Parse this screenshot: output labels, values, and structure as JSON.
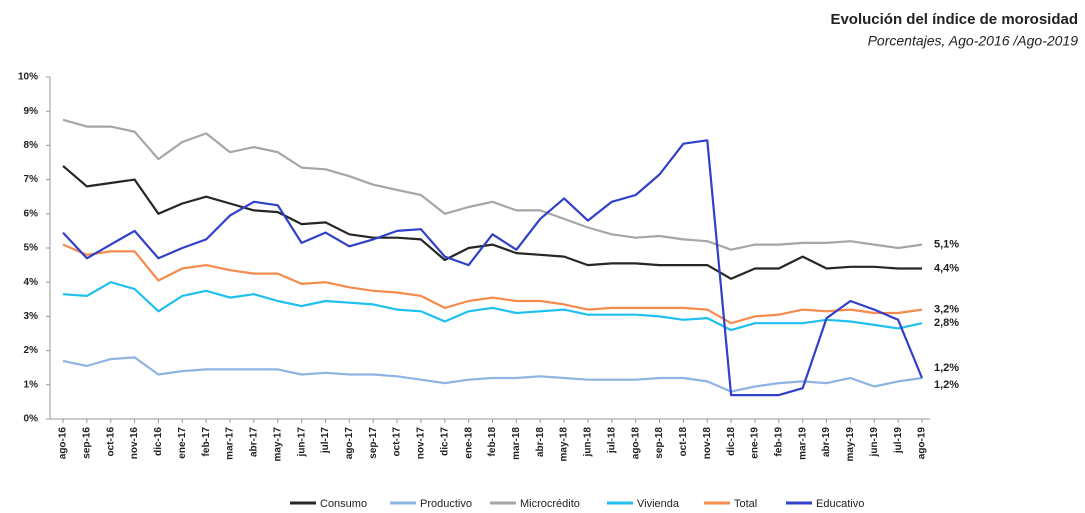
{
  "chart_data": {
    "type": "line",
    "title": "Evolución del  índice de morosidad",
    "subtitle": "Porcentajes, Ago-2016 /Ago-2019",
    "categories": [
      "ago-16",
      "sep-16",
      "oct-16",
      "nov-16",
      "dic-16",
      "ene-17",
      "feb-17",
      "mar-17",
      "abr-17",
      "may-17",
      "jun-17",
      "jul-17",
      "ago-17",
      "sep-17",
      "oct-17",
      "nov-17",
      "dic-17",
      "ene-18",
      "feb-18",
      "mar-18",
      "abr-18",
      "may-18",
      "jun-18",
      "jul-18",
      "ago-18",
      "sep-18",
      "oct-18",
      "nov-18",
      "dic-18",
      "ene-19",
      "feb-19",
      "mar-19",
      "abr-19",
      "may-19",
      "jun-19",
      "jul-19",
      "ago-19"
    ],
    "ylim": [
      0,
      10
    ],
    "yticks": [
      {
        "value": 0,
        "label": "0%"
      },
      {
        "value": 1,
        "label": "1%"
      },
      {
        "value": 2,
        "label": "2%"
      },
      {
        "value": 3,
        "label": "3%"
      },
      {
        "value": 4,
        "label": "4%"
      },
      {
        "value": 5,
        "label": "5%"
      },
      {
        "value": 6,
        "label": "6%"
      },
      {
        "value": 7,
        "label": "7%"
      },
      {
        "value": 8,
        "label": "8%"
      },
      {
        "value": 9,
        "label": "9%"
      },
      {
        "value": 10,
        "label": "10%"
      }
    ],
    "grid": false,
    "legend": "bottom",
    "series": [
      {
        "name": "Consumo",
        "color": "#262626",
        "values": [
          7.4,
          6.8,
          6.9,
          7.0,
          6.0,
          6.3,
          6.5,
          6.3,
          6.1,
          6.05,
          5.7,
          5.75,
          5.4,
          5.3,
          5.3,
          5.25,
          4.65,
          5.0,
          5.1,
          4.85,
          4.8,
          4.75,
          4.5,
          4.55,
          4.55,
          4.5,
          4.5,
          4.5,
          4.1,
          4.4,
          4.4,
          4.75,
          4.4,
          4.45,
          4.45,
          4.4,
          4.4
        ],
        "value_labels": [
          null,
          null,
          null,
          null,
          null,
          null,
          null,
          null,
          null,
          null,
          null,
          null,
          null,
          null,
          null,
          null,
          null,
          null,
          null,
          null,
          null,
          null,
          null,
          null,
          null,
          null,
          null,
          null,
          null,
          null,
          null,
          null,
          null,
          null,
          null,
          null,
          "4,4%"
        ]
      },
      {
        "name": "Productivo",
        "color": "#8db4e2",
        "values": [
          1.7,
          1.55,
          1.75,
          1.8,
          1.3,
          1.4,
          1.45,
          1.45,
          1.45,
          1.45,
          1.3,
          1.35,
          1.3,
          1.3,
          1.25,
          1.15,
          1.05,
          1.15,
          1.2,
          1.2,
          1.25,
          1.2,
          1.15,
          1.15,
          1.15,
          1.2,
          1.2,
          1.1,
          0.8,
          0.95,
          1.05,
          1.1,
          1.05,
          1.2,
          0.95,
          1.1,
          1.2
        ],
        "value_labels": [
          null,
          null,
          null,
          null,
          null,
          null,
          null,
          null,
          null,
          null,
          null,
          null,
          null,
          null,
          null,
          null,
          null,
          null,
          null,
          null,
          null,
          null,
          null,
          null,
          null,
          null,
          null,
          null,
          null,
          null,
          null,
          null,
          null,
          null,
          null,
          null,
          "1,2%"
        ]
      },
      {
        "name": "Microcrédito",
        "color": "#a6a6a6",
        "values": [
          8.75,
          8.55,
          8.55,
          8.4,
          7.6,
          8.1,
          8.35,
          7.8,
          7.95,
          7.8,
          7.35,
          7.3,
          7.1,
          6.85,
          6.7,
          6.55,
          6.0,
          6.2,
          6.35,
          6.1,
          6.1,
          5.85,
          5.6,
          5.4,
          5.3,
          5.35,
          5.25,
          5.2,
          4.95,
          5.1,
          5.1,
          5.15,
          5.15,
          5.2,
          5.1,
          5.0,
          5.1
        ],
        "value_labels": [
          null,
          null,
          null,
          null,
          null,
          null,
          null,
          null,
          null,
          null,
          null,
          null,
          null,
          null,
          null,
          null,
          null,
          null,
          null,
          null,
          null,
          null,
          null,
          null,
          null,
          null,
          null,
          null,
          null,
          null,
          null,
          null,
          null,
          null,
          null,
          null,
          "5,1%"
        ]
      },
      {
        "name": "Vivienda",
        "color": "#1fc0f0",
        "values": [
          3.65,
          3.6,
          4.0,
          3.8,
          3.15,
          3.6,
          3.75,
          3.55,
          3.65,
          3.45,
          3.3,
          3.45,
          3.4,
          3.35,
          3.2,
          3.15,
          2.85,
          3.15,
          3.25,
          3.1,
          3.15,
          3.2,
          3.05,
          3.05,
          3.05,
          3.0,
          2.9,
          2.95,
          2.6,
          2.8,
          2.8,
          2.8,
          2.9,
          2.85,
          2.75,
          2.65,
          2.8
        ],
        "value_labels": [
          null,
          null,
          null,
          null,
          null,
          null,
          null,
          null,
          null,
          null,
          null,
          null,
          null,
          null,
          null,
          null,
          null,
          null,
          null,
          null,
          null,
          null,
          null,
          null,
          null,
          null,
          null,
          null,
          null,
          null,
          null,
          null,
          null,
          null,
          null,
          null,
          "2,8%"
        ]
      },
      {
        "name": "Total",
        "color": "#f58b4c",
        "values": [
          5.1,
          4.8,
          4.9,
          4.9,
          4.05,
          4.4,
          4.5,
          4.35,
          4.25,
          4.25,
          3.95,
          4.0,
          3.85,
          3.75,
          3.7,
          3.6,
          3.25,
          3.45,
          3.55,
          3.45,
          3.45,
          3.35,
          3.2,
          3.25,
          3.25,
          3.25,
          3.25,
          3.2,
          2.8,
          3.0,
          3.05,
          3.2,
          3.15,
          3.2,
          3.1,
          3.1,
          3.2
        ],
        "value_labels": [
          null,
          null,
          null,
          null,
          null,
          null,
          null,
          null,
          null,
          null,
          null,
          null,
          null,
          null,
          null,
          null,
          null,
          null,
          null,
          null,
          null,
          null,
          null,
          null,
          null,
          null,
          null,
          null,
          null,
          null,
          null,
          null,
          null,
          null,
          null,
          null,
          "3,2%"
        ]
      },
      {
        "name": "Educativo",
        "color": "#3040c8",
        "values": [
          5.45,
          4.7,
          5.1,
          5.5,
          4.7,
          5.0,
          5.25,
          5.95,
          6.35,
          6.25,
          5.15,
          5.45,
          5.05,
          5.25,
          5.5,
          5.55,
          4.75,
          4.5,
          5.4,
          4.95,
          5.85,
          6.45,
          5.8,
          6.35,
          6.55,
          7.15,
          8.05,
          8.15,
          0.7,
          0.7,
          0.7,
          0.9,
          2.95,
          3.45,
          3.2,
          2.9,
          1.2
        ],
        "value_labels": [
          null,
          null,
          null,
          null,
          null,
          null,
          null,
          null,
          null,
          null,
          null,
          null,
          null,
          null,
          null,
          null,
          null,
          null,
          null,
          null,
          null,
          null,
          null,
          null,
          null,
          null,
          null,
          null,
          null,
          null,
          null,
          null,
          null,
          null,
          null,
          null,
          "1,2%"
        ]
      }
    ]
  }
}
